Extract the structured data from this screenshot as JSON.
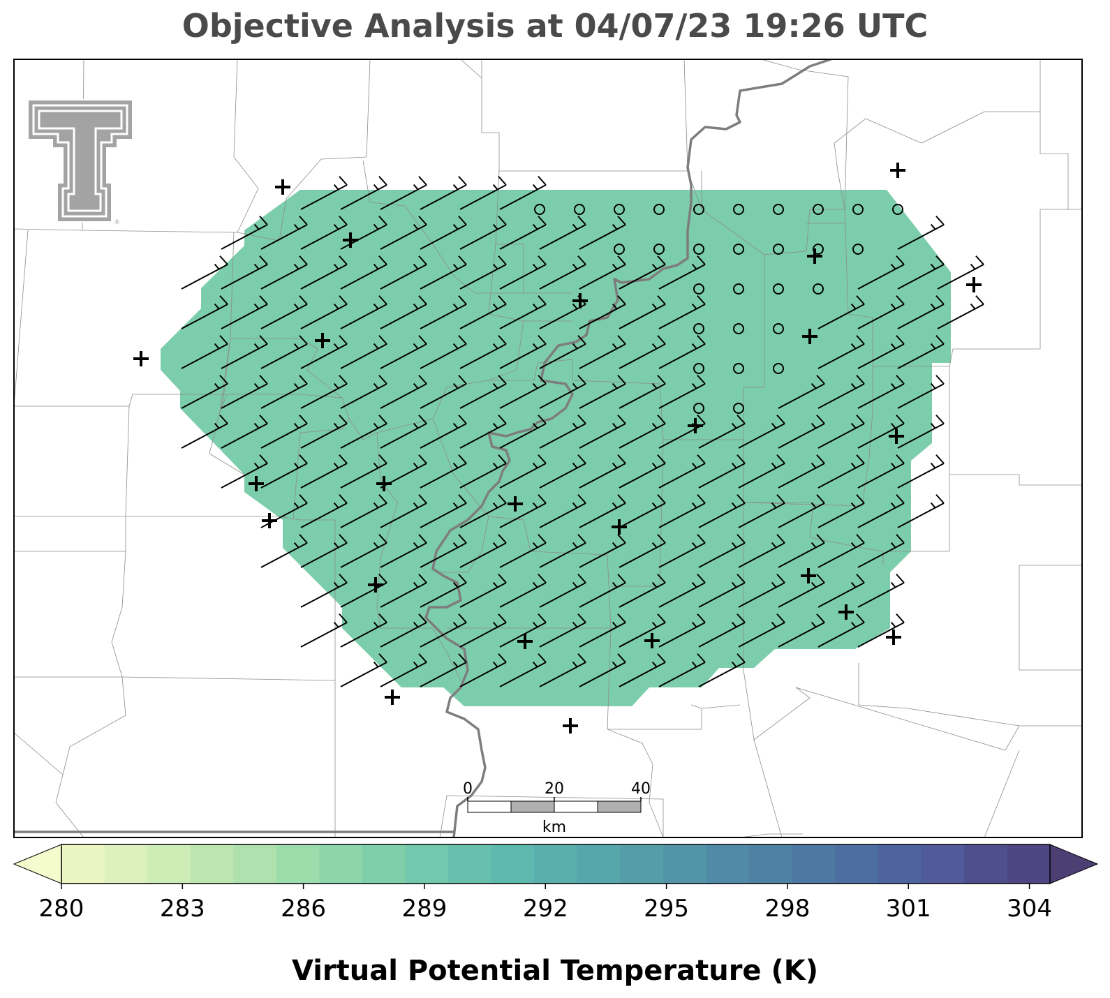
{
  "title": "Objective Analysis at 04/07/23 19:26 UTC",
  "colorbar": {
    "label": "Virtual Potential Temperature (K)",
    "ticks": [
      "280",
      "283",
      "286",
      "289",
      "292",
      "295",
      "298",
      "301",
      "304"
    ],
    "colors": [
      "#f4fbcd",
      "#e9f6c3",
      "#dcf1bd",
      "#cdecb6",
      "#bde6b2",
      "#aee1ad",
      "#9edcab",
      "#8ed5ab",
      "#7fcfab",
      "#72c7ad",
      "#67c0ae",
      "#5fb8ae",
      "#5aafad",
      "#56a6ab",
      "#549eaa",
      "#5294a8",
      "#508aa6",
      "#4f81a4",
      "#4e77a2",
      "#4d6ea0",
      "#4f649e",
      "#515a9a",
      "#504f8e",
      "#4d4682",
      "#4b3f74"
    ]
  },
  "scale_bar": {
    "labels": [
      "0",
      "20",
      "40"
    ],
    "unit": "km"
  },
  "field_color": "#7ccdac",
  "logo": "texas-tech-double-t-logo"
}
